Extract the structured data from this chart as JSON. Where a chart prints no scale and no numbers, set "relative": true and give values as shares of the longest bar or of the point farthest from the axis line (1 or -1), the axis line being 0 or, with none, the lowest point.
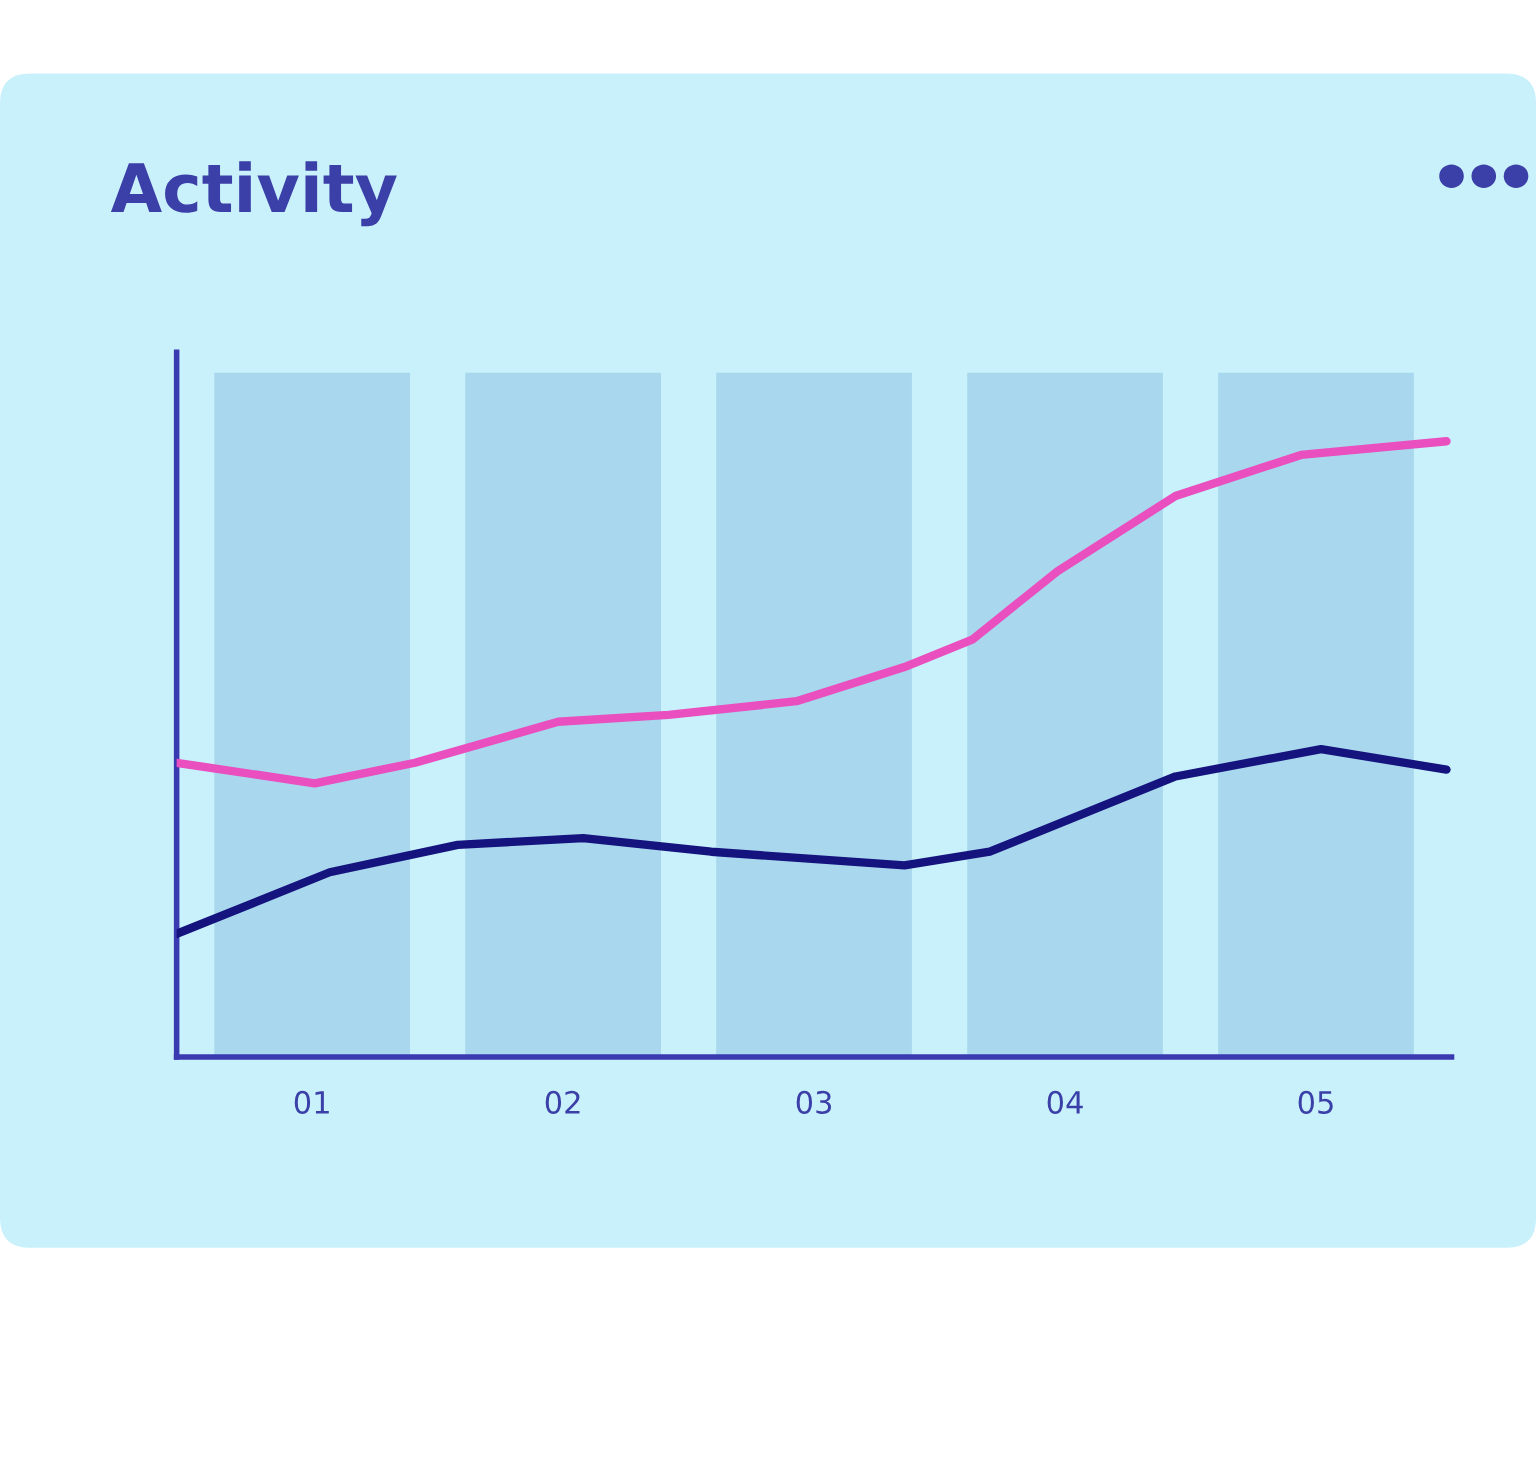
{
  "chart_data": {
    "type": "line",
    "title": "Activity",
    "relative": true,
    "x": [
      1,
      2,
      3,
      4,
      5
    ],
    "xlim": [
      0.46,
      5.54
    ],
    "xticks": [
      {
        "value": 1,
        "label": "01"
      },
      {
        "value": 2,
        "label": "02"
      },
      {
        "value": 3,
        "label": "03"
      },
      {
        "value": 4,
        "label": "04"
      },
      {
        "value": 5,
        "label": "05"
      }
    ],
    "series": [
      {
        "type": "bar",
        "color": "#a9d8ee",
        "values": [
          1,
          1,
          1,
          1,
          1
        ]
      },
      {
        "color": "#e94fbe",
        "x": [
          0.46,
          1.01,
          1.41,
          1.98,
          2.42,
          2.93,
          3.36,
          3.63,
          3.97,
          4.44,
          4.94,
          5.52
        ],
        "values": [
          0.43,
          0.4,
          0.43,
          0.49,
          0.5,
          0.52,
          0.57,
          0.61,
          0.71,
          0.82,
          0.88,
          0.9
        ]
      },
      {
        "color": "#15137e",
        "x": [
          0.46,
          1.07,
          1.58,
          2.08,
          2.59,
          3.36,
          3.7,
          4.44,
          5.02,
          5.52
        ],
        "values": [
          0.18,
          0.27,
          0.31,
          0.32,
          0.3,
          0.28,
          0.3,
          0.41,
          0.45,
          0.42
        ]
      }
    ],
    "marker": "none",
    "line_style": "solid",
    "grid": false
  }
}
